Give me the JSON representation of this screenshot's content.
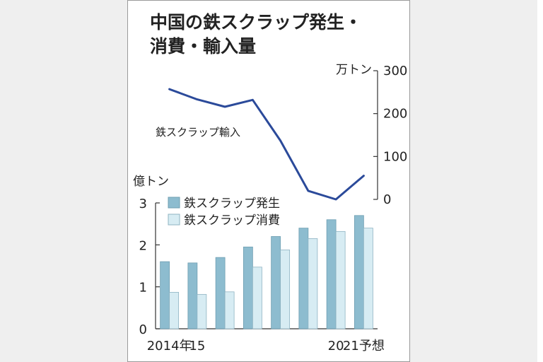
{
  "chart_data": [
    {
      "type": "line",
      "title": "中国の鉄スクラップ発生・消費・輸入量",
      "title_lines": [
        "中国の鉄スクラップ発生・",
        "消費・輸入量"
      ],
      "unit": "万トン",
      "series": [
        {
          "name": "鉄スクラップ輸入",
          "values": [
            257,
            233,
            216,
            232,
            137,
            20,
            0,
            55
          ]
        }
      ],
      "ylim": [
        0,
        300
      ],
      "yticks": [
        "300",
        "200",
        "100",
        "0"
      ],
      "axis_side": "right",
      "color": "#2b4a9a"
    },
    {
      "type": "bar",
      "unit": "億トン",
      "categories": [
        "2014年",
        "15",
        "",
        "",
        "",
        "",
        "20",
        "21予想"
      ],
      "series": [
        {
          "name": "鉄スクラップ発生",
          "values": [
            1.6,
            1.57,
            1.7,
            1.95,
            2.2,
            2.4,
            2.6,
            2.7
          ],
          "color": "#8dbccf"
        },
        {
          "name": "鉄スクラップ消費",
          "values": [
            0.87,
            0.82,
            0.88,
            1.47,
            1.88,
            2.15,
            2.32,
            2.4
          ],
          "color": "#d7ecf3"
        }
      ],
      "ylim": [
        0,
        3
      ],
      "yticks": [
        "3",
        "2",
        "1",
        "0"
      ],
      "legend_position": "top-left"
    }
  ]
}
